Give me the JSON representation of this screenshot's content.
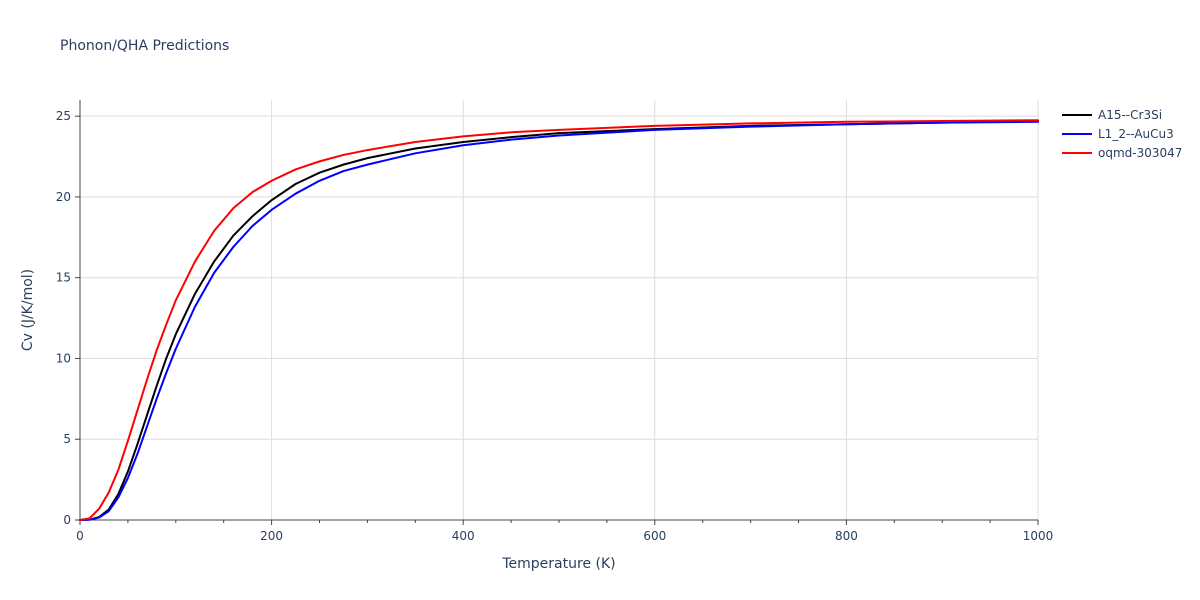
{
  "chart_data": {
    "type": "line",
    "title": "Phonon/QHA Predictions",
    "xlabel": "Temperature (K)",
    "ylabel": "Cv (J/K/mol)",
    "xlim": [
      0,
      1000
    ],
    "ylim": [
      0,
      26
    ],
    "x_ticks": [
      0,
      200,
      400,
      600,
      800,
      1000
    ],
    "y_ticks": [
      0,
      5,
      10,
      15,
      20,
      25
    ],
    "x_tick_labels": [
      "0",
      "200",
      "400",
      "600",
      "800",
      "1000"
    ],
    "y_tick_labels": [
      "0",
      "5",
      "10",
      "15",
      "20",
      "25"
    ],
    "grid": true,
    "legend_position": "top-right, outside plot",
    "series": [
      {
        "name": "A15--Cr3Si",
        "color": "#000000",
        "x": [
          0,
          10,
          20,
          30,
          40,
          50,
          60,
          70,
          80,
          90,
          100,
          120,
          140,
          160,
          180,
          200,
          225,
          250,
          275,
          300,
          350,
          400,
          450,
          500,
          600,
          700,
          800,
          900,
          1000
        ],
        "y": [
          0,
          0.02,
          0.18,
          0.65,
          1.6,
          3.0,
          4.7,
          6.5,
          8.3,
          10.0,
          11.5,
          14.0,
          16.0,
          17.6,
          18.8,
          19.8,
          20.8,
          21.5,
          22.0,
          22.4,
          23.0,
          23.4,
          23.7,
          23.95,
          24.2,
          24.4,
          24.5,
          24.6,
          24.7
        ]
      },
      {
        "name": "L1_2--AuCu3",
        "color": "#0000ff",
        "x": [
          0,
          10,
          20,
          30,
          40,
          50,
          60,
          70,
          80,
          90,
          100,
          120,
          140,
          160,
          180,
          200,
          225,
          250,
          275,
          300,
          350,
          400,
          450,
          500,
          600,
          700,
          800,
          900,
          1000
        ],
        "y": [
          0,
          0.02,
          0.15,
          0.55,
          1.4,
          2.6,
          4.1,
          5.8,
          7.5,
          9.1,
          10.6,
          13.2,
          15.3,
          16.9,
          18.2,
          19.2,
          20.2,
          21.0,
          21.6,
          22.0,
          22.7,
          23.2,
          23.55,
          23.8,
          24.15,
          24.35,
          24.5,
          24.6,
          24.65
        ]
      },
      {
        "name": "oqmd-303047",
        "color": "#ff0000",
        "x": [
          0,
          10,
          20,
          30,
          40,
          50,
          60,
          70,
          80,
          90,
          100,
          120,
          140,
          160,
          180,
          200,
          225,
          250,
          275,
          300,
          350,
          400,
          450,
          500,
          600,
          700,
          800,
          900,
          1000
        ],
        "y": [
          0,
          0.1,
          0.7,
          1.7,
          3.1,
          4.9,
          6.8,
          8.7,
          10.5,
          12.1,
          13.6,
          16.0,
          17.9,
          19.3,
          20.3,
          21.0,
          21.7,
          22.2,
          22.6,
          22.9,
          23.4,
          23.75,
          24.0,
          24.15,
          24.4,
          24.55,
          24.65,
          24.7,
          24.75
        ]
      }
    ]
  }
}
